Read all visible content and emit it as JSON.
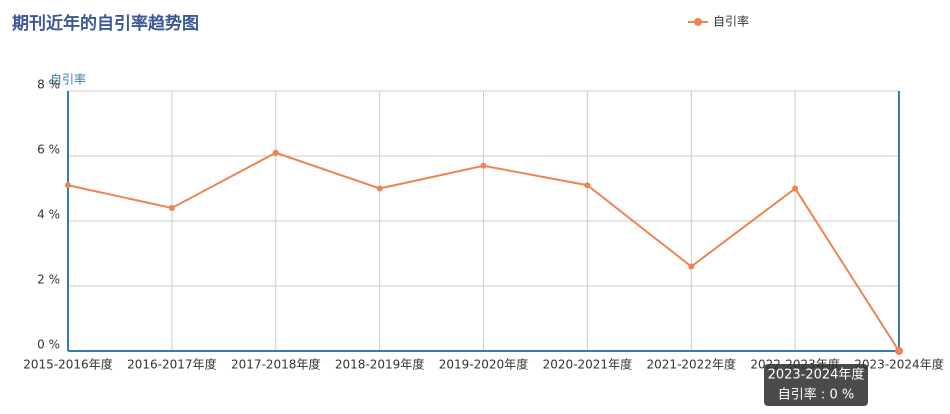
{
  "chart_data": {
    "type": "line",
    "title": "期刊近年的自引率趋势图",
    "y_axis_label": "自引率",
    "categories": [
      "2015-2016年度",
      "2016-2017年度",
      "2017-2018年度",
      "2018-2019年度",
      "2019-2020年度",
      "2020-2021年度",
      "2021-2022年度",
      "2022-2023年度",
      "2023-2024年度"
    ],
    "series": [
      {
        "name": "自引率",
        "color": "#ee8453",
        "values": [
          5.1,
          4.4,
          6.1,
          5.0,
          5.7,
          5.1,
          2.6,
          5.0,
          0
        ]
      }
    ],
    "ylim": [
      0,
      8
    ],
    "yticks": [
      {
        "value": 0,
        "label": "0 %"
      },
      {
        "value": 2,
        "label": "2 %"
      },
      {
        "value": 4,
        "label": "4 %"
      },
      {
        "value": 6,
        "label": "6 %"
      },
      {
        "value": 8,
        "label": "8 %"
      }
    ],
    "grid": true,
    "legend": "top-right",
    "tooltip": {
      "text": "自引率 : 0 %"
    }
  }
}
